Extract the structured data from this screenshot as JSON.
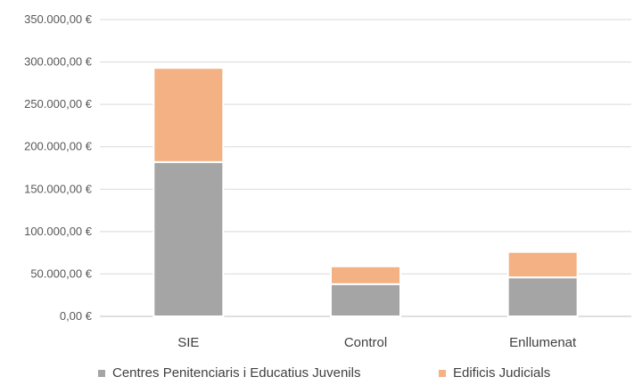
{
  "chart_data": {
    "type": "bar",
    "stacked": true,
    "categories": [
      "SIE",
      "Control",
      "Enllumenat"
    ],
    "series": [
      {
        "name": "Centres Penitenciaris i Educatius Juvenils",
        "color": "#a5a5a5",
        "values": [
          182000,
          38000,
          46000
        ]
      },
      {
        "name": "Edificis Judicials",
        "color": "#f4b183",
        "values": [
          111000,
          21000,
          30000
        ]
      }
    ],
    "ylim": [
      0,
      350000
    ],
    "y_ticks": [
      "0,00 €",
      "50.000,00 €",
      "100.000,00 €",
      "150.000,00 €",
      "200.000,00 €",
      "250.000,00 €",
      "300.000,00 €",
      "350.000,00 €"
    ],
    "grid": true,
    "legend_position": "bottom"
  }
}
